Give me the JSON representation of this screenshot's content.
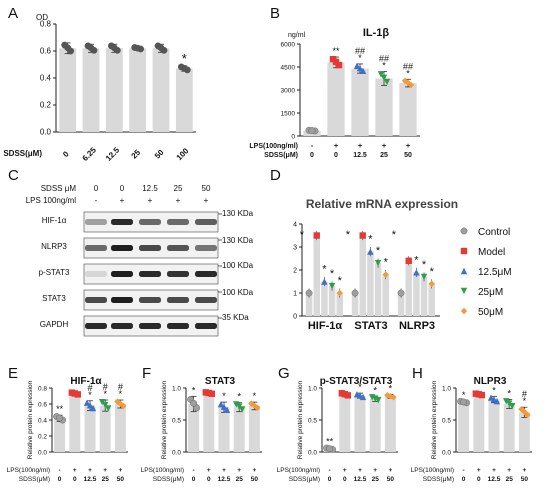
{
  "panel_letters": {
    "A": "A",
    "B": "B",
    "C": "C",
    "D": "D",
    "E": "E",
    "F": "F",
    "G": "G",
    "H": "H"
  },
  "colors": {
    "bar": "#d9d9d9",
    "control": "#9e9e9e",
    "model": "#e53935",
    "c12": "#3f6fc6",
    "c25": "#2e9e4a",
    "c50": "#f29b38",
    "title_d": "#444444",
    "axis": "#222222"
  },
  "chart_data": [
    {
      "id": "A",
      "type": "bar",
      "ylabel": "OD",
      "xlabel": "SDSS(μM)",
      "categories": [
        "0",
        "6.25",
        "12.5",
        "25",
        "50",
        "100"
      ],
      "values": [
        0.62,
        0.62,
        0.62,
        0.62,
        0.62,
        0.47
      ],
      "errors": [
        0.04,
        0.03,
        0.03,
        0.01,
        0.03,
        0.02
      ],
      "ylim": [
        0,
        0.8
      ],
      "yticks": [
        "0.0",
        "0.2",
        "0.4",
        "0.6",
        "0.8"
      ],
      "annotations": [
        "",
        "",
        "",
        "",
        "",
        "*"
      ]
    },
    {
      "id": "B",
      "type": "bar",
      "title": "IL-1β",
      "ylabel": "ng/ml",
      "row_labels": [
        "LPS(100ng/ml)",
        "SDSS(μM)"
      ],
      "row1": [
        "-",
        "+",
        "+",
        "+",
        "+"
      ],
      "row2": [
        "0",
        "0",
        "12.5",
        "25",
        "50"
      ],
      "values": [
        350,
        4800,
        4400,
        3750,
        3450
      ],
      "errors": [
        40,
        350,
        300,
        450,
        250
      ],
      "ylim": [
        0,
        6000
      ],
      "yticks": [
        "0",
        "1500",
        "3000",
        "4500",
        "6000"
      ],
      "annotations": [
        "",
        "**",
        "##\n*",
        "##\n*",
        "##\n*"
      ]
    },
    {
      "id": "D",
      "type": "bar",
      "title": "Relative mRNA expression",
      "categories": [
        "HIF-1α",
        "STAT3",
        "NLRP3"
      ],
      "series": [
        {
          "name": "Control",
          "values": [
            1.0,
            1.0,
            1.0
          ]
        },
        {
          "name": "Model",
          "values": [
            3.5,
            3.5,
            2.4
          ]
        },
        {
          "name": "12.5μM",
          "values": [
            1.5,
            2.8,
            1.9
          ]
        },
        {
          "name": "25μM",
          "values": [
            1.3,
            2.3,
            1.7
          ]
        },
        {
          "name": "50μM",
          "values": [
            1.0,
            1.8,
            1.4
          ]
        }
      ],
      "ylim": [
        0,
        4
      ],
      "yticks": [
        "0",
        "1",
        "2",
        "3",
        "4"
      ],
      "stars": {
        "HIF-1α": "*",
        "STAT3": "*",
        "NLRP3": "*"
      }
    },
    {
      "id": "E",
      "type": "bar",
      "title": "HIF-1α",
      "ylabel": "Relative protein expression",
      "row_labels": [
        "LPS(100ng/ml)",
        "SDSS(μM)"
      ],
      "row1": [
        "-",
        "+",
        "+",
        "+",
        "+"
      ],
      "row2": [
        "0",
        "0",
        "12.5",
        "25",
        "50"
      ],
      "values": [
        0.42,
        0.73,
        0.58,
        0.58,
        0.6
      ],
      "errors": [
        0.04,
        0.02,
        0.06,
        0.07,
        0.05
      ],
      "ylim": [
        0,
        0.8
      ],
      "yticks": [
        "0.0",
        "0.2",
        "0.4",
        "0.6",
        "0.8"
      ],
      "annotations": [
        "**",
        "",
        "#\n*",
        "#\n*",
        "#\n*"
      ]
    },
    {
      "id": "F",
      "type": "bar",
      "title": "STAT3",
      "ylabel": "Relative protein expression",
      "row_labels": [
        "LPS(100ng/ml)",
        "SDSS(μM)"
      ],
      "row1": [
        "-",
        "+",
        "+",
        "+",
        "+"
      ],
      "row2": [
        "0",
        "0",
        "12.5",
        "25",
        "50"
      ],
      "values": [
        0.75,
        0.92,
        0.7,
        0.7,
        0.72
      ],
      "errors": [
        0.12,
        0.02,
        0.08,
        0.07,
        0.06
      ],
      "ylim": [
        0,
        1.0
      ],
      "yticks": [
        "0.0",
        "0.5",
        "1.0"
      ],
      "annotations": [
        "*",
        "",
        "*",
        "*",
        "*"
      ]
    },
    {
      "id": "G",
      "type": "bar",
      "title": "p-STAT3/STAT3",
      "ylabel": "Relative protein expression",
      "row_labels": [
        "LPS(100ng/ml)",
        "SDSS(μM)"
      ],
      "row1": [
        "-",
        "+",
        "+",
        "+",
        "+"
      ],
      "row2": [
        "0",
        "0",
        "12.5",
        "25",
        "50"
      ],
      "values": [
        0.05,
        0.9,
        0.88,
        0.83,
        0.87
      ],
      "errors": [
        0.02,
        0.03,
        0.04,
        0.04,
        0.03
      ],
      "ylim": [
        0,
        1.0
      ],
      "yticks": [
        "0.0",
        "0.5",
        "1.0"
      ],
      "annotations": [
        "**",
        "",
        "*",
        "*",
        "*"
      ]
    },
    {
      "id": "H",
      "type": "bar",
      "title": "NLPR3",
      "ylabel": "Relative protein expression",
      "row_labels": [
        "LPS(100ng/ml)",
        "SDSS(μM)"
      ],
      "row1": [
        "-",
        "+",
        "+",
        "+",
        "+"
      ],
      "row2": [
        "0",
        "0",
        "12.5",
        "25",
        "50"
      ],
      "values": [
        0.78,
        0.9,
        0.82,
        0.75,
        0.62
      ],
      "errors": [
        0.02,
        0.02,
        0.05,
        0.07,
        0.08
      ],
      "ylim": [
        0,
        1.0
      ],
      "yticks": [
        "0.0",
        "0.5",
        "1.0"
      ],
      "annotations": [
        "*",
        "",
        "*",
        "*",
        "#\n*"
      ]
    }
  ],
  "western": {
    "header_rows": [
      {
        "label": "SDSS μM",
        "values": [
          "0",
          "0",
          "12.5",
          "25",
          "50"
        ]
      },
      {
        "label": "LPS 100ng/ml",
        "values": [
          "-",
          "+",
          "+",
          "+",
          "+"
        ]
      }
    ],
    "bands": [
      {
        "name": "HIF-1α",
        "kda": "130 KDa",
        "levels": [
          0.35,
          0.9,
          0.6,
          0.6,
          0.65
        ]
      },
      {
        "name": "NLRP3",
        "kda": "130 KDa",
        "levels": [
          0.6,
          0.95,
          0.75,
          0.7,
          0.55
        ]
      },
      {
        "name": "p-STAT3",
        "kda": "100 KDa",
        "levels": [
          0.1,
          0.95,
          0.9,
          0.85,
          0.9
        ]
      },
      {
        "name": "STAT3",
        "kda": "100 KDa",
        "levels": [
          0.75,
          0.95,
          0.75,
          0.75,
          0.75
        ]
      },
      {
        "name": "GAPDH",
        "kda": "35 KDa",
        "levels": [
          0.9,
          0.9,
          0.9,
          0.9,
          0.9
        ]
      }
    ]
  }
}
